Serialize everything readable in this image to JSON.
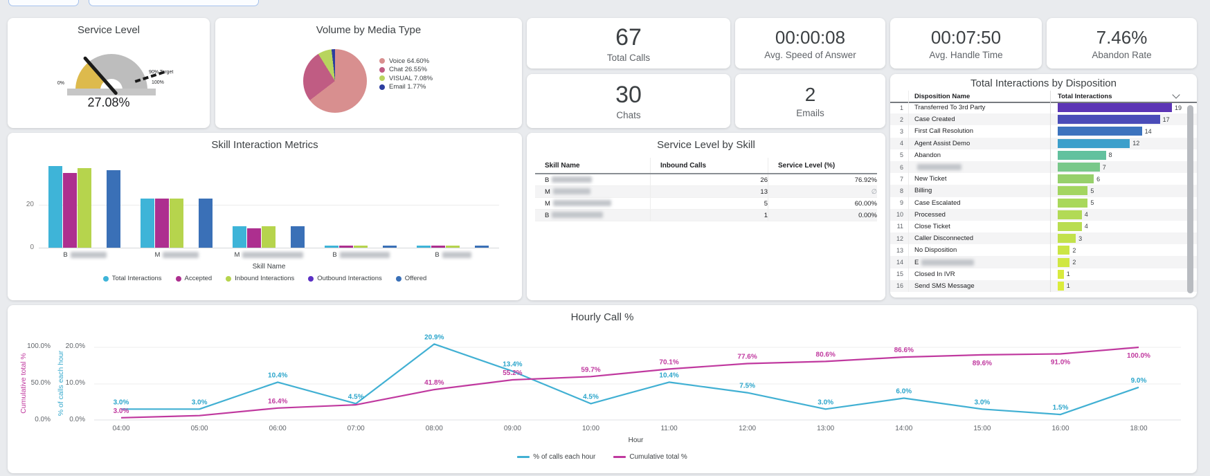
{
  "kpis": [
    {
      "value": "67",
      "label": "Total Calls"
    },
    {
      "value": "00:00:08",
      "label": "Avg. Speed of Answer"
    },
    {
      "value": "00:07:50",
      "label": "Avg. Handle Time"
    },
    {
      "value": "7.46%",
      "label": "Abandon Rate"
    },
    {
      "value": "30",
      "label": "Chats"
    },
    {
      "value": "2",
      "label": "Emails"
    }
  ],
  "chart_data": [
    {
      "id": "service_level_gauge",
      "type": "gauge",
      "title": "Service Level",
      "value": 27.08,
      "value_label": "27.08%",
      "min": 0,
      "max": 100,
      "min_label": "0%",
      "max_label": "100%",
      "target": 90,
      "target_label": "90% Target",
      "fill_color": "#ddba4d",
      "track_color": "#bdbdbd",
      "needle_color": "#1a1a1a"
    },
    {
      "id": "volume_by_media_type",
      "type": "pie",
      "title": "Volume by Media Type",
      "labels": [
        "Voice",
        "Chat",
        "VISUAL",
        "Email"
      ],
      "values": [
        64.6,
        26.55,
        7.08,
        1.77
      ],
      "legend_labels": [
        "Voice 64.60%",
        "Chat 26.55%",
        "VISUAL 7.08%",
        "Email 1.77%"
      ],
      "colors": [
        "#d88f8f",
        "#c05c83",
        "#b8d45e",
        "#2c3e9f"
      ]
    },
    {
      "id": "skill_interaction_metrics",
      "type": "bar",
      "title": "Skill Interaction Metrics",
      "xlabel": "Skill Name",
      "ylim": [
        0,
        40
      ],
      "yticks": [
        "0",
        "20"
      ],
      "categories": [
        {
          "prefix": "B",
          "redacted": true,
          "blur_w": 52
        },
        {
          "prefix": "M",
          "redacted": true,
          "blur_w": 52
        },
        {
          "prefix": "M",
          "redacted": true,
          "blur_w": 88
        },
        {
          "prefix": "B",
          "redacted": true,
          "blur_w": 72
        },
        {
          "prefix": "B",
          "redacted": true,
          "blur_w": 42
        }
      ],
      "series": [
        {
          "name": "Total Interactions",
          "color": "#3eb4d8",
          "values": [
            38,
            23,
            10,
            1,
            1
          ]
        },
        {
          "name": "Accepted",
          "color": "#ad2f8f",
          "values": [
            35,
            23,
            9,
            1,
            1
          ]
        },
        {
          "name": "Inbound Interactions",
          "color": "#b6d44d",
          "values": [
            37,
            23,
            10,
            1,
            1
          ]
        },
        {
          "name": "Outbound Interactions",
          "color": "#5b30c4",
          "values": [
            0,
            0,
            0,
            0,
            0
          ]
        },
        {
          "name": "Offered",
          "color": "#3a70b7",
          "values": [
            36,
            23,
            10,
            1,
            1
          ]
        }
      ]
    },
    {
      "id": "service_level_by_skill",
      "type": "table",
      "title": "Service Level by Skill",
      "columns": [
        "Skill Name",
        "Inbound Calls",
        "Service Level (%)"
      ],
      "rows": [
        {
          "name_prefix": "B",
          "redacted": true,
          "blur_w": 58,
          "inbound_calls": "26",
          "service_level": "76.92%"
        },
        {
          "name_prefix": "M",
          "redacted": true,
          "blur_w": 54,
          "inbound_calls": "13",
          "service_level": "∅"
        },
        {
          "name_prefix": "M",
          "redacted": true,
          "blur_w": 84,
          "inbound_calls": "5",
          "service_level": "60.00%"
        },
        {
          "name_prefix": "B",
          "redacted": true,
          "blur_w": 74,
          "inbound_calls": "1",
          "service_level": "0.00%"
        }
      ]
    },
    {
      "id": "total_interactions_by_disposition",
      "type": "bar",
      "title": "Total Interactions by Disposition",
      "columns": [
        "Disposition Name",
        "Total Interactions"
      ],
      "max_value": 19,
      "rows": [
        {
          "rank": 1,
          "name": "Transferred To 3rd Party",
          "redacted": false,
          "value": 19,
          "color": "#5c35b5"
        },
        {
          "rank": 2,
          "name": "Case Created",
          "redacted": false,
          "value": 17,
          "color": "#4a4cb8"
        },
        {
          "rank": 3,
          "name": "First Call Resolution",
          "redacted": false,
          "value": 14,
          "color": "#3c73be"
        },
        {
          "rank": 4,
          "name": "Agent Assist Demo",
          "redacted": false,
          "value": 12,
          "color": "#3d9fcb"
        },
        {
          "rank": 5,
          "name": "Abandon",
          "redacted": false,
          "value": 8,
          "color": "#62c19e"
        },
        {
          "rank": 6,
          "name": "",
          "redacted": true,
          "blur_w": 64,
          "value": 7,
          "color": "#79c88a"
        },
        {
          "rank": 7,
          "name": "New Ticket",
          "redacted": false,
          "value": 6,
          "color": "#97d06b"
        },
        {
          "rank": 8,
          "name": "Billing",
          "redacted": false,
          "value": 5,
          "color": "#a3d560"
        },
        {
          "rank": 9,
          "name": "Case Escalated",
          "redacted": false,
          "value": 5,
          "color": "#a9d85b"
        },
        {
          "rank": 10,
          "name": "Processed",
          "redacted": false,
          "value": 4,
          "color": "#b2da55"
        },
        {
          "rank": 11,
          "name": "Close Ticket",
          "redacted": false,
          "value": 4,
          "color": "#b9dd51"
        },
        {
          "rank": 12,
          "name": "Caller Disconnected",
          "redacted": false,
          "value": 3,
          "color": "#c2e14b"
        },
        {
          "rank": 13,
          "name": "No Disposition",
          "redacted": false,
          "value": 2,
          "color": "#cbe545"
        },
        {
          "rank": 14,
          "name": "E",
          "redacted": true,
          "blur_w": 76,
          "value": 2,
          "color": "#d0e742"
        },
        {
          "rank": 15,
          "name": "Closed In IVR",
          "redacted": false,
          "value": 1,
          "color": "#d8ea3e"
        },
        {
          "rank": 16,
          "name": "Send SMS Message",
          "redacted": false,
          "value": 1,
          "color": "#dbec3c"
        }
      ]
    },
    {
      "id": "hourly_call_pct",
      "type": "line",
      "title": "Hourly Call %",
      "xlabel": "Hour",
      "x": [
        "04:00",
        "05:00",
        "06:00",
        "07:00",
        "08:00",
        "09:00",
        "10:00",
        "11:00",
        "12:00",
        "13:00",
        "14:00",
        "15:00",
        "16:00",
        "18:00"
      ],
      "series": [
        {
          "name": "% of calls each hour",
          "color": "#41b0d3",
          "label_color": "#2ba5cb",
          "axis": {
            "label": "% of calls each hour",
            "ticks": [
              "0.0%",
              "10.0%",
              "20.0%"
            ],
            "max": 20
          },
          "values": [
            3.0,
            3.0,
            10.4,
            4.5,
            20.9,
            13.4,
            4.5,
            10.4,
            7.5,
            3.0,
            6.0,
            3.0,
            1.5,
            9.0
          ],
          "labels": [
            "3.0%",
            "3.0%",
            "10.4%",
            "4.5%",
            "20.9%",
            "13.4%",
            "4.5%",
            "10.4%",
            "7.5%",
            "3.0%",
            "6.0%",
            "3.0%",
            "1.5%",
            "9.0%"
          ],
          "label_below": [
            false,
            false,
            false,
            false,
            false,
            false,
            false,
            false,
            false,
            false,
            false,
            false,
            false,
            false
          ]
        },
        {
          "name": "Cumulative total %",
          "color": "#c0399f",
          "label_color": "#c0399f",
          "axis": {
            "label": "Cumulative total %",
            "ticks": [
              "0.0%",
              "50.0%",
              "100.0%"
            ],
            "max": 100
          },
          "values": [
            3.0,
            6.0,
            16.4,
            20.9,
            41.8,
            55.2,
            59.7,
            70.1,
            77.6,
            80.6,
            86.6,
            89.6,
            91.0,
            100.0
          ],
          "labels": [
            "3.0%",
            "",
            "16.4%",
            "",
            "41.8%",
            "55.2%",
            "59.7%",
            "70.1%",
            "77.6%",
            "80.6%",
            "86.6%",
            "89.6%",
            "91.0%",
            "100.0%"
          ],
          "label_below": [
            false,
            false,
            false,
            false,
            false,
            false,
            false,
            false,
            false,
            false,
            false,
            true,
            true,
            true
          ]
        }
      ]
    }
  ]
}
